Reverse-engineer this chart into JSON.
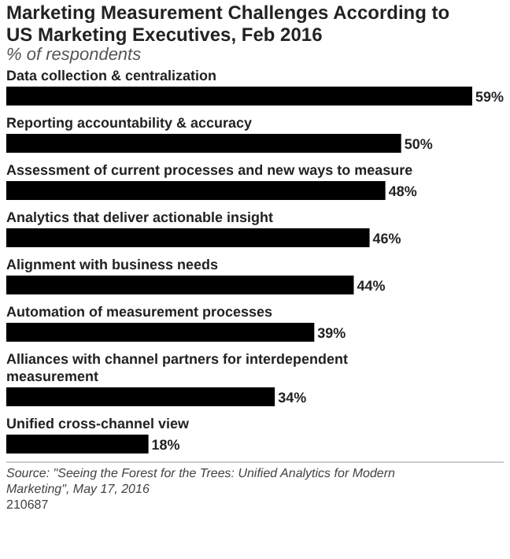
{
  "chart_data": {
    "type": "bar",
    "orientation": "horizontal",
    "title": "Marketing Measurement Challenges According to US Marketing Executives, Feb 2016",
    "subtitle": "% of respondents",
    "categories": [
      "Data collection & centralization",
      "Reporting accountability & accuracy",
      "Assessment of current processes and new ways to measure",
      "Analytics that deliver actionable insight",
      "Alignment with business needs",
      "Automation of measurement processes",
      "Alliances with channel partners for interdependent measurement",
      "Unified cross-channel view"
    ],
    "values": [
      59,
      50,
      48,
      46,
      44,
      39,
      34,
      18
    ],
    "value_labels": [
      "59%",
      "50%",
      "48%",
      "46%",
      "44%",
      "39%",
      "34%",
      "18%"
    ],
    "color": "#000000",
    "annotations": [
      "Source: \"Seeing the Forest for the Trees: Unified Analytics for Modern Marketing\", May 17, 2016",
      "210687"
    ]
  }
}
